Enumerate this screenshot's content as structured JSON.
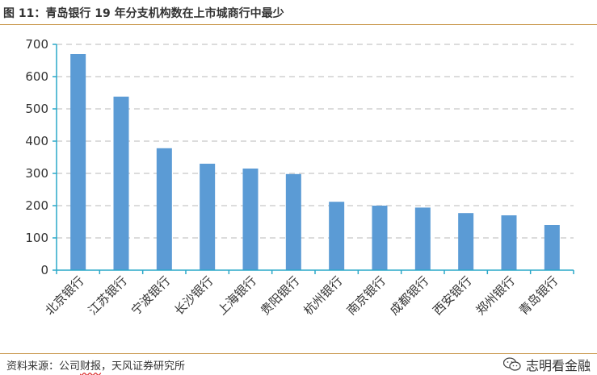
{
  "figure": {
    "title": "图 11：青岛银行 19 年分支机构数在上市城商行中最少"
  },
  "footer": {
    "source_prefix": "资料来源：公司",
    "source_highlight": "财报",
    "source_suffix": "，天风证券研究所",
    "watermark": "志明看金融",
    "watermark_icon": "wechat-icon"
  },
  "chart_data": {
    "type": "bar",
    "categories": [
      "北京银行",
      "江苏银行",
      "宁波银行",
      "长沙银行",
      "上海银行",
      "贵阳银行",
      "杭州银行",
      "南京银行",
      "成都银行",
      "西安银行",
      "郑州银行",
      "青岛银行"
    ],
    "values": [
      670,
      538,
      378,
      330,
      315,
      298,
      212,
      200,
      194,
      177,
      170,
      140
    ],
    "ylim": [
      0,
      700
    ],
    "yticks": [
      0,
      100,
      200,
      300,
      400,
      500,
      600,
      700
    ],
    "grid": true,
    "bar_color": "#5b9bd5",
    "axis_color": "#2aa8c9",
    "grid_color": "#d0d0d0"
  }
}
